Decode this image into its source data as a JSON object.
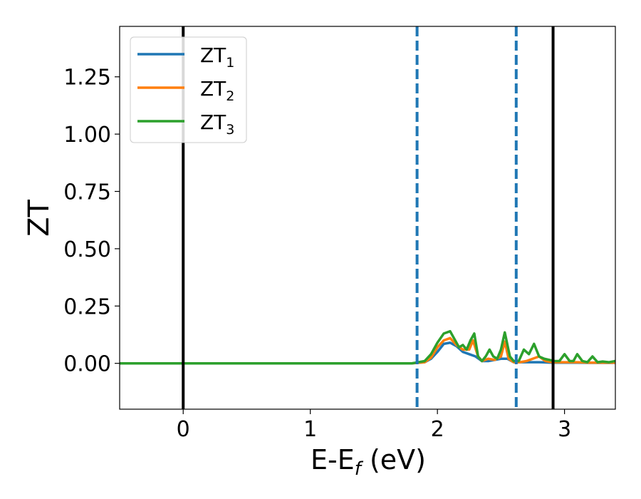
{
  "chart_data": {
    "type": "line",
    "xlabel_main": "E-E",
    "xlabel_sub": "f",
    "xlabel_unit": " (eV)",
    "ylabel": "ZT",
    "xlim": [
      -0.5,
      3.4
    ],
    "ylim": [
      -0.2,
      1.47
    ],
    "xticks": [
      0,
      1,
      2,
      3
    ],
    "xtick_labels": [
      "0",
      "1",
      "2",
      "3"
    ],
    "yticks": [
      0,
      0.25,
      0.5,
      0.75,
      1.0,
      1.25
    ],
    "ytick_labels": [
      "0.00",
      "0.25",
      "0.50",
      "0.75",
      "1.00",
      "1.25"
    ],
    "grid": false,
    "legend_position": "top-left",
    "vlines": [
      {
        "x": 0.0,
        "style": "solid",
        "color": "#000000"
      },
      {
        "x": 2.91,
        "style": "solid",
        "color": "#000000"
      },
      {
        "x": 1.84,
        "style": "dashed",
        "color": "#1f77b4"
      },
      {
        "x": 2.62,
        "style": "dashed",
        "color": "#1f77b4"
      }
    ],
    "series": [
      {
        "name": "ZT",
        "name_sub": "1",
        "color": "#1f77b4",
        "x": [
          -0.5,
          0.0,
          1.0,
          1.8,
          1.9,
          1.95,
          2.0,
          2.05,
          2.1,
          2.15,
          2.2,
          2.25,
          2.3,
          2.35,
          2.4,
          2.45,
          2.5,
          2.55,
          2.6,
          2.7,
          2.8,
          2.9,
          3.0,
          3.1,
          3.2,
          3.3,
          3.4
        ],
        "y": [
          0,
          0,
          0,
          0,
          0.005,
          0.02,
          0.05,
          0.085,
          0.09,
          0.075,
          0.05,
          0.04,
          0.03,
          0.01,
          0.01,
          0.015,
          0.02,
          0.02,
          0.005,
          0.005,
          0.005,
          0.003,
          0.003,
          0.003,
          0.002,
          0.002,
          0.002
        ]
      },
      {
        "name": "ZT",
        "name_sub": "2",
        "color": "#ff7f0e",
        "x": [
          -0.5,
          0.0,
          1.0,
          1.8,
          1.9,
          1.95,
          2.0,
          2.05,
          2.1,
          2.15,
          2.2,
          2.25,
          2.28,
          2.32,
          2.35,
          2.4,
          2.45,
          2.5,
          2.53,
          2.56,
          2.6,
          2.65,
          2.7,
          2.75,
          2.8,
          2.85,
          2.9,
          3.0,
          3.1,
          3.2,
          3.3,
          3.4
        ],
        "y": [
          0,
          0,
          0,
          0,
          0.005,
          0.025,
          0.07,
          0.1,
          0.11,
          0.08,
          0.06,
          0.06,
          0.1,
          0.03,
          0.01,
          0.02,
          0.015,
          0.03,
          0.095,
          0.02,
          0.005,
          0.005,
          0.01,
          0.02,
          0.03,
          0.01,
          0.005,
          0.005,
          0.005,
          0.003,
          0.003,
          0.003
        ]
      },
      {
        "name": "ZT",
        "name_sub": "3",
        "color": "#2ca02c",
        "x": [
          -0.5,
          0.0,
          1.0,
          1.8,
          1.9,
          1.95,
          2.0,
          2.05,
          2.1,
          2.13,
          2.17,
          2.2,
          2.23,
          2.26,
          2.29,
          2.32,
          2.35,
          2.38,
          2.41,
          2.44,
          2.47,
          2.5,
          2.53,
          2.57,
          2.6,
          2.64,
          2.68,
          2.72,
          2.76,
          2.8,
          2.84,
          2.88,
          2.92,
          2.96,
          3.0,
          3.04,
          3.07,
          3.1,
          3.14,
          3.18,
          3.22,
          3.26,
          3.3,
          3.35,
          3.4
        ],
        "y": [
          0,
          0,
          0,
          0,
          0.01,
          0.04,
          0.09,
          0.13,
          0.14,
          0.11,
          0.07,
          0.08,
          0.06,
          0.1,
          0.13,
          0.03,
          0.01,
          0.03,
          0.06,
          0.03,
          0.02,
          0.06,
          0.135,
          0.03,
          0.01,
          0.01,
          0.06,
          0.04,
          0.085,
          0.03,
          0.02,
          0.015,
          0.01,
          0.01,
          0.04,
          0.01,
          0.01,
          0.04,
          0.01,
          0.005,
          0.03,
          0.005,
          0.008,
          0.005,
          0.01
        ]
      }
    ]
  }
}
